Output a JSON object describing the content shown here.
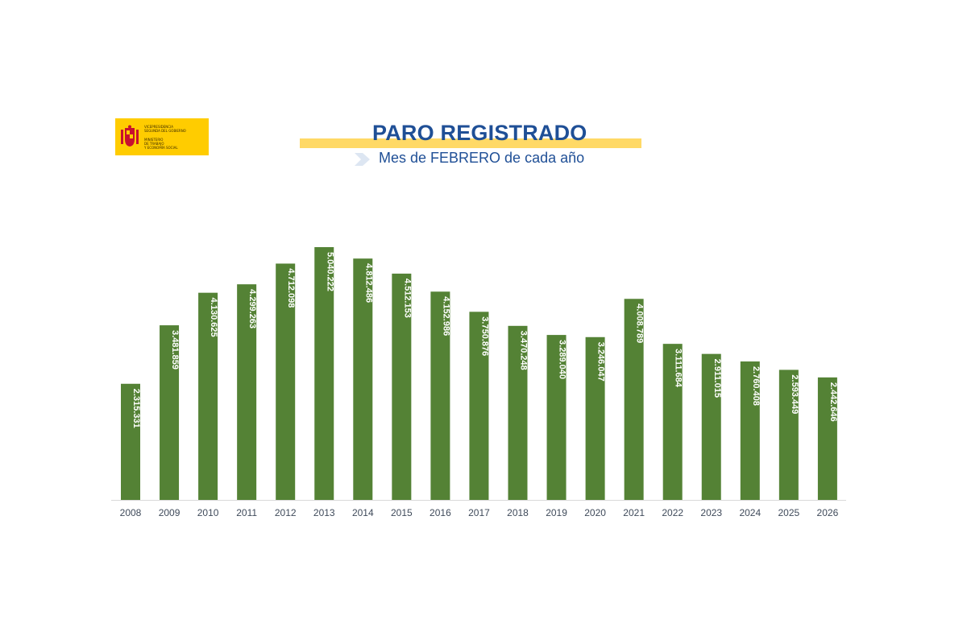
{
  "logo": {
    "lines": [
      "Vicepresidencia",
      "Segunda del Gobierno",
      "Ministerio",
      "de Trabajo",
      "y Economía Social"
    ]
  },
  "header": {
    "title": "PARO REGISTRADO",
    "subtitle": "Mes de FEBRERO de cada año"
  },
  "colors": {
    "bar": "#548235",
    "title": "#1f4f96",
    "highlight": "#ffd966",
    "logo_bg": "#ffcc00"
  },
  "chart_data": {
    "type": "bar",
    "title": "PARO REGISTRADO",
    "subtitle": "Mes de FEBRERO de cada año",
    "categories": [
      "2008",
      "2009",
      "2010",
      "2011",
      "2012",
      "2013",
      "2014",
      "2015",
      "2016",
      "2017",
      "2018",
      "2019",
      "2020",
      "2021",
      "2022",
      "2023",
      "2024",
      "2025",
      "2026"
    ],
    "values": [
      2315331,
      3481859,
      4130625,
      4299263,
      4712098,
      5040222,
      4812486,
      4512153,
      4152986,
      3750876,
      3470248,
      3289040,
      3246047,
      4008789,
      3111684,
      2911015,
      2760408,
      2593449,
      2442646
    ],
    "labels": [
      "2.315.331",
      "3.481.859",
      "4.130.625",
      "4.299.263",
      "4.712.098",
      "5.040.222",
      "4.812.486",
      "4.512.153",
      "4.152.986",
      "3.750.876",
      "3.470.248",
      "3.289.040",
      "3.246.047",
      "4.008.789",
      "3.111.684",
      "2.911.015",
      "2.760.408",
      "2.593.449",
      "2.442.646"
    ],
    "xlabel": "",
    "ylabel": "",
    "ylim": [
      0,
      5040222
    ],
    "grid": false,
    "legend": "none"
  }
}
